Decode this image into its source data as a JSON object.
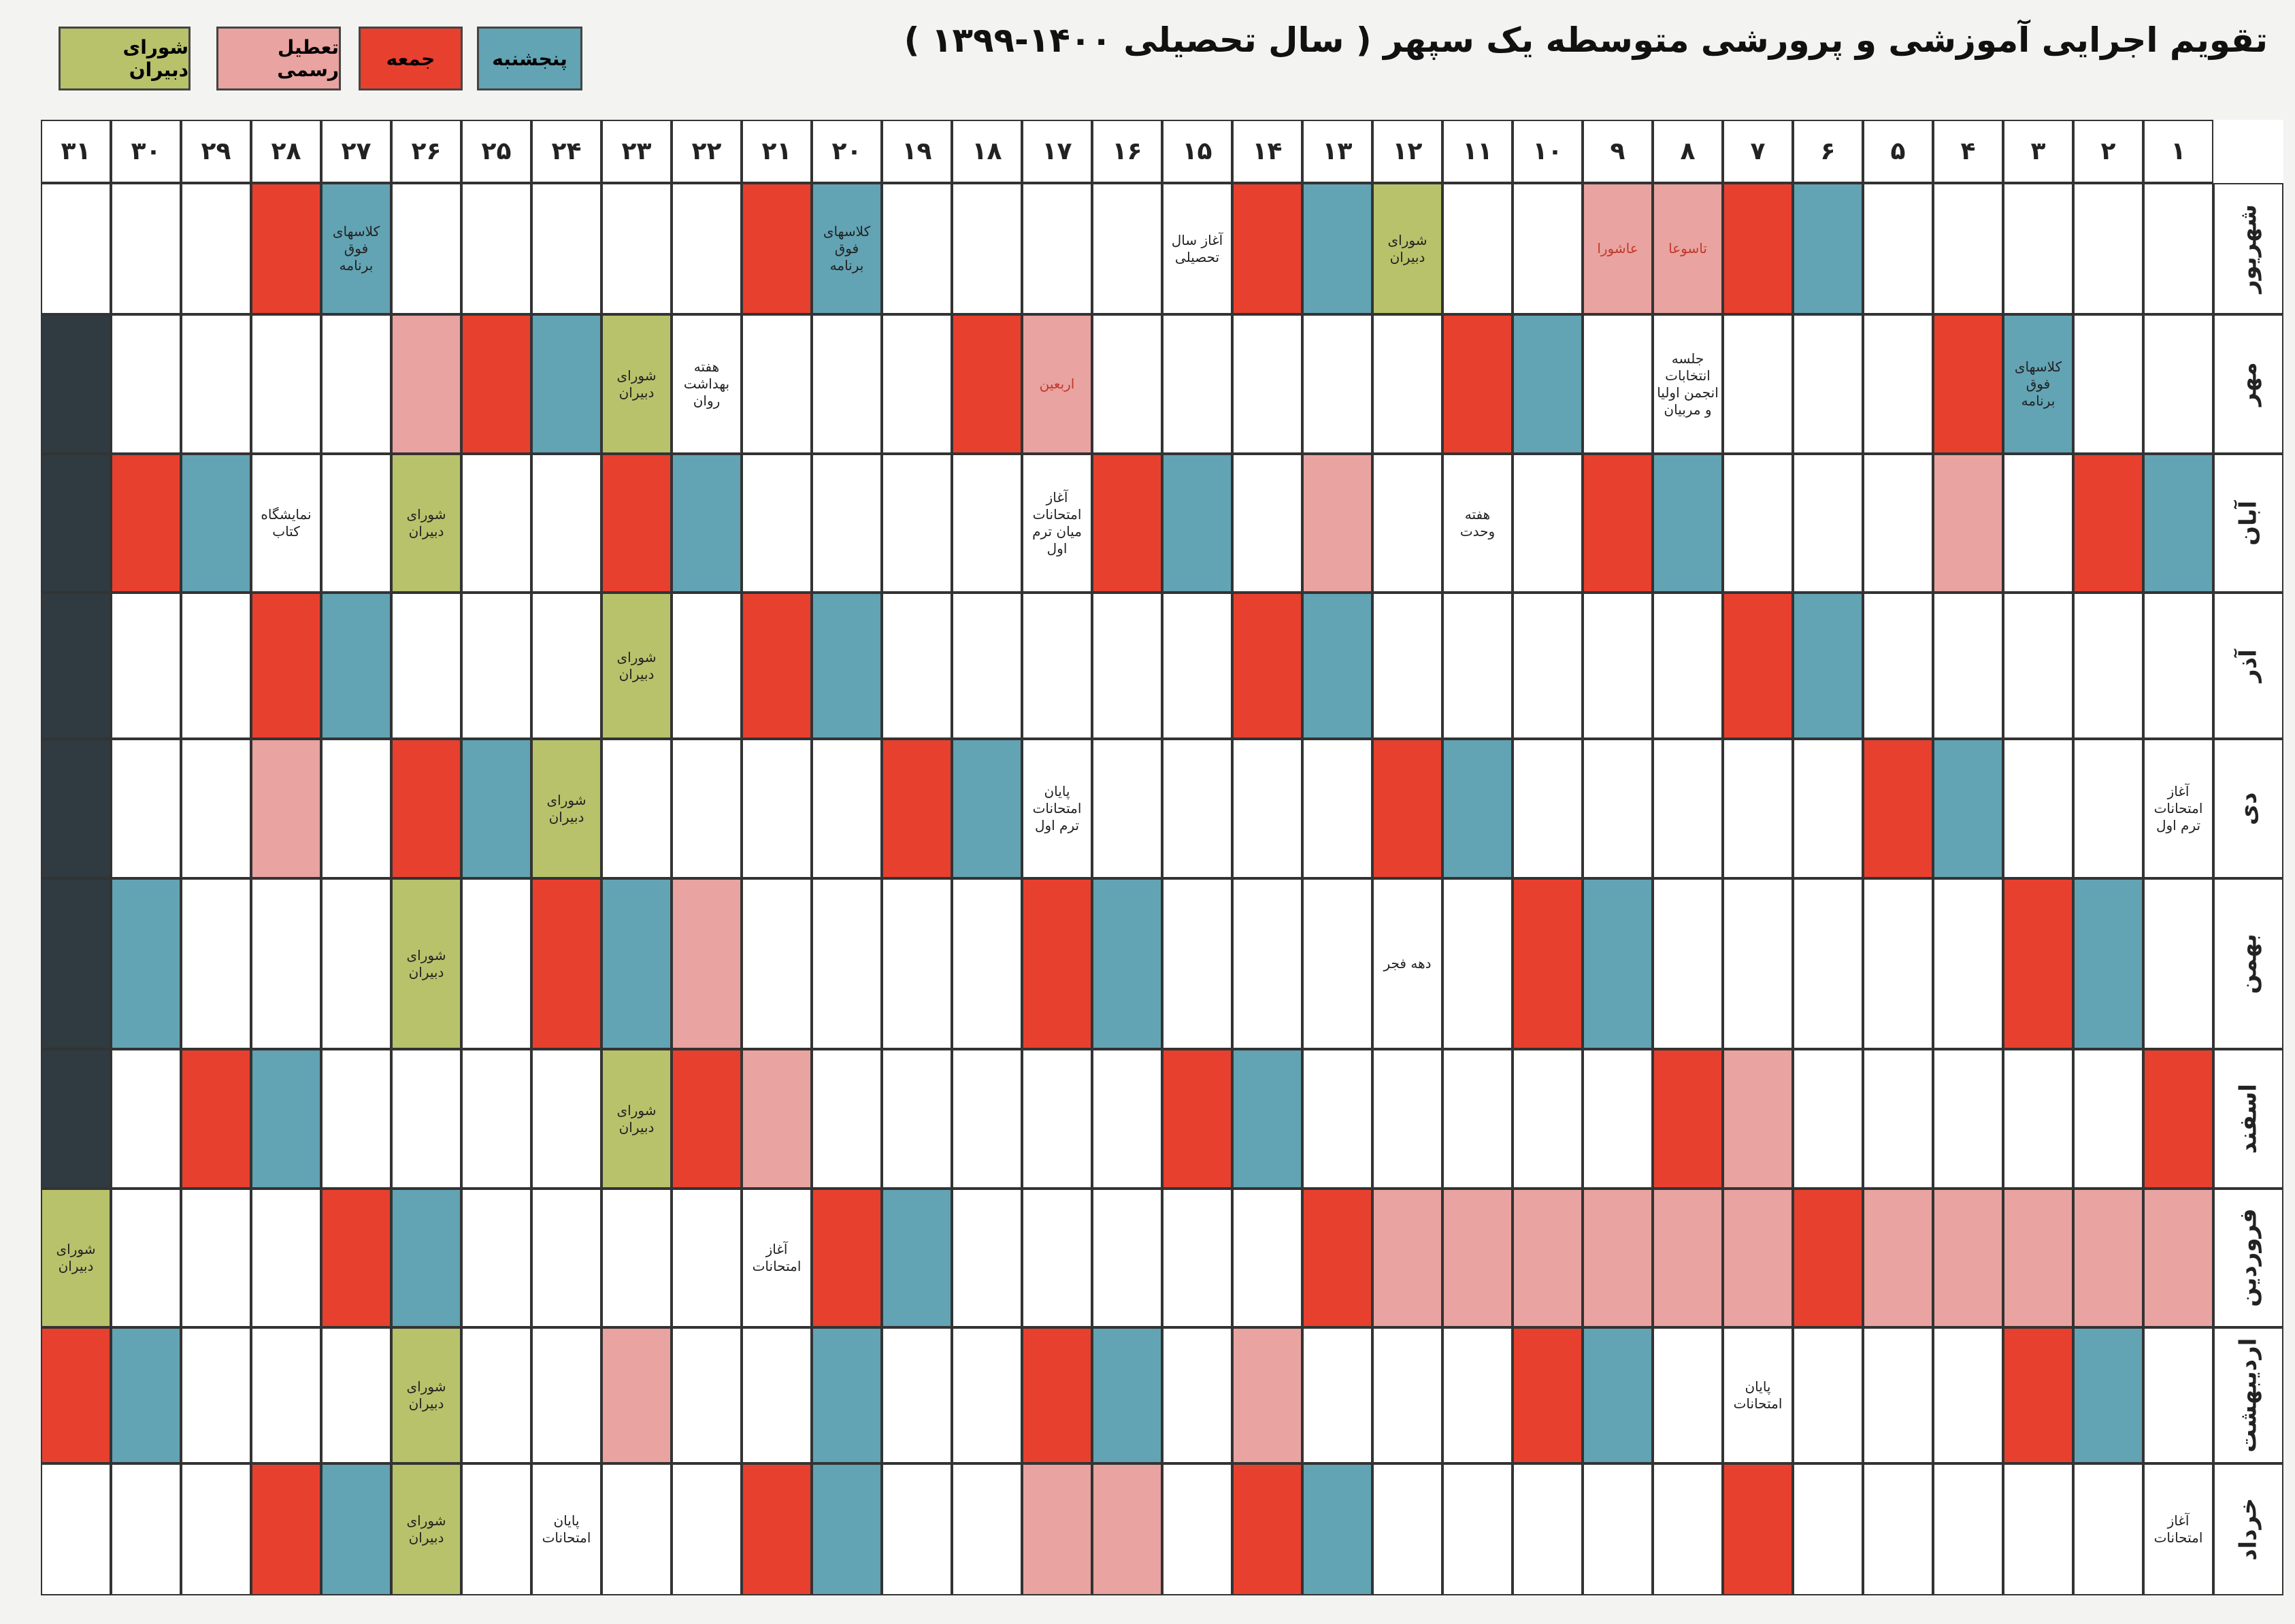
{
  "title": "تقویم اجرایی آموزشی و پرورشی متوسطه یک سپهر ( سال تحصیلی ۱۴۰۰-۱۳۹۹ )",
  "palette": {
    "w": "#ffffff",
    "r": "#e8402e",
    "b": "#62a3b4",
    "p": "#e9a3a0",
    "g": "#b7c26b",
    "d": "#2f3a41"
  },
  "legend": [
    {
      "label": "پنجشنبه",
      "color": "b"
    },
    {
      "label": "جمعه",
      "color": "r"
    },
    {
      "label": "تعطیل رسمی",
      "color": "p"
    },
    {
      "label": "شورای دبیران",
      "color": "g"
    }
  ],
  "days": [
    "۱",
    "۲",
    "۳",
    "۴",
    "۵",
    "۶",
    "۷",
    "۸",
    "۹",
    "۱۰",
    "۱۱",
    "۱۲",
    "۱۳",
    "۱۴",
    "۱۵",
    "۱۶",
    "۱۷",
    "۱۸",
    "۱۹",
    "۲۰",
    "۲۱",
    "۲۲",
    "۲۳",
    "۲۴",
    "۲۵",
    "۲۶",
    "۲۷",
    "۲۸",
    "۲۹",
    "۳۰",
    "۳۱"
  ],
  "months": [
    {
      "name": "شهریور",
      "colors": [
        "w",
        "w",
        "w",
        "w",
        "w",
        "b",
        "r",
        "p",
        "p",
        "w",
        "w",
        "g",
        "b",
        "r",
        "w",
        "w",
        "w",
        "w",
        "w",
        "b",
        "r",
        "w",
        "w",
        "w",
        "w",
        "w",
        "b",
        "r",
        "w",
        "w",
        "w"
      ],
      "texts": [
        null,
        null,
        null,
        null,
        null,
        null,
        null,
        "تاسوعا",
        "عاشورا",
        null,
        null,
        "شورای دبیران",
        null,
        null,
        "آغاز سال تحصیلی",
        null,
        null,
        null,
        null,
        "کلاسهای فوق برنامه",
        null,
        null,
        null,
        null,
        null,
        null,
        "کلاسهای فوق برنامه",
        null,
        null,
        null,
        null
      ]
    },
    {
      "name": "مهر",
      "colors": [
        "w",
        "w",
        "b",
        "r",
        "w",
        "w",
        "w",
        "w",
        "w",
        "b",
        "r",
        "w",
        "w",
        "w",
        "w",
        "w",
        "p",
        "r",
        "w",
        "w",
        "w",
        "w",
        "g",
        "b",
        "r",
        "p",
        "w",
        "w",
        "w",
        "w",
        "d"
      ],
      "texts": [
        null,
        null,
        "کلاسهای فوق برنامه",
        null,
        null,
        null,
        null,
        "جلسه انتخابات انجمن اولیا و مربیان",
        null,
        null,
        null,
        null,
        null,
        null,
        null,
        null,
        "اربعین",
        null,
        null,
        null,
        null,
        "هفته بهداشت روان",
        "شورای دبیران",
        null,
        null,
        null,
        null,
        null,
        null,
        null,
        null
      ]
    },
    {
      "name": "آبان",
      "colors": [
        "b",
        "r",
        "w",
        "p",
        "w",
        "w",
        "w",
        "b",
        "r",
        "w",
        "w",
        "w",
        "p",
        "w",
        "b",
        "r",
        "w",
        "w",
        "w",
        "w",
        "w",
        "b",
        "r",
        "w",
        "w",
        "g",
        "w",
        "w",
        "b",
        "r",
        "d"
      ],
      "texts": [
        null,
        null,
        null,
        null,
        null,
        null,
        null,
        null,
        null,
        null,
        "هفته وحدت",
        null,
        null,
        null,
        null,
        null,
        "آغاز امتحانات میان ترم اول",
        null,
        null,
        null,
        null,
        null,
        null,
        null,
        null,
        "شورای دبیران",
        null,
        "نمایشگاه کتاب",
        null,
        null,
        null
      ]
    },
    {
      "name": "آذر",
      "colors": [
        "w",
        "w",
        "w",
        "w",
        "w",
        "b",
        "r",
        "w",
        "w",
        "w",
        "w",
        "w",
        "b",
        "r",
        "w",
        "w",
        "w",
        "w",
        "w",
        "b",
        "r",
        "w",
        "g",
        "w",
        "w",
        "w",
        "b",
        "r",
        "w",
        "w",
        "d"
      ],
      "texts": [
        null,
        null,
        null,
        null,
        null,
        null,
        null,
        null,
        null,
        null,
        null,
        null,
        null,
        null,
        null,
        null,
        null,
        null,
        null,
        null,
        null,
        null,
        "شورای دبیران",
        null,
        null,
        null,
        null,
        null,
        null,
        null,
        null
      ]
    },
    {
      "name": "دی",
      "colors": [
        "w",
        "w",
        "w",
        "b",
        "r",
        "w",
        "w",
        "w",
        "w",
        "w",
        "b",
        "r",
        "w",
        "w",
        "w",
        "w",
        "w",
        "b",
        "r",
        "w",
        "w",
        "w",
        "w",
        "g",
        "b",
        "r",
        "w",
        "p",
        "w",
        "w",
        "d"
      ],
      "texts": [
        "آغاز امتحانات ترم اول",
        null,
        null,
        null,
        null,
        null,
        null,
        null,
        null,
        null,
        null,
        null,
        null,
        null,
        null,
        null,
        "پایان امتحانات ترم اول",
        null,
        null,
        null,
        null,
        null,
        null,
        "شورای دبیران",
        null,
        null,
        null,
        null,
        null,
        null,
        null
      ]
    },
    {
      "name": "بهمن",
      "colors": [
        "w",
        "b",
        "r",
        "w",
        "w",
        "w",
        "w",
        "w",
        "b",
        "r",
        "w",
        "w",
        "w",
        "w",
        "w",
        "b",
        "r",
        "w",
        "w",
        "w",
        "w",
        "p",
        "b",
        "r",
        "w",
        "g",
        "w",
        "w",
        "w",
        "b",
        "d"
      ],
      "texts": [
        null,
        null,
        null,
        null,
        null,
        null,
        null,
        null,
        null,
        null,
        null,
        "دهه فجر",
        null,
        null,
        null,
        null,
        null,
        null,
        null,
        null,
        null,
        null,
        null,
        null,
        null,
        "شورای دبیران",
        null,
        null,
        null,
        null,
        null
      ]
    },
    {
      "name": "اسفند",
      "colors": [
        "r",
        "w",
        "w",
        "w",
        "w",
        "w",
        "p",
        "r",
        "w",
        "w",
        "w",
        "w",
        "w",
        "b",
        "r",
        "w",
        "w",
        "w",
        "w",
        "w",
        "p",
        "r",
        "g",
        "w",
        "w",
        "w",
        "w",
        "b",
        "r",
        "w",
        "d"
      ],
      "texts": [
        null,
        null,
        null,
        null,
        null,
        null,
        null,
        null,
        null,
        null,
        null,
        null,
        null,
        null,
        null,
        null,
        null,
        null,
        null,
        null,
        null,
        null,
        "شورای دبیران",
        null,
        null,
        null,
        null,
        null,
        null,
        null,
        null
      ]
    },
    {
      "name": "فروردین",
      "colors": [
        "p",
        "p",
        "p",
        "p",
        "p",
        "r",
        "p",
        "p",
        "p",
        "p",
        "p",
        "p",
        "r",
        "w",
        "w",
        "w",
        "w",
        "w",
        "b",
        "r",
        "w",
        "w",
        "w",
        "w",
        "w",
        "b",
        "r",
        "w",
        "w",
        "w",
        "g"
      ],
      "texts": [
        null,
        null,
        null,
        null,
        null,
        null,
        null,
        null,
        null,
        null,
        null,
        null,
        null,
        null,
        null,
        null,
        null,
        null,
        null,
        null,
        "آغاز امتحانات",
        null,
        null,
        null,
        null,
        null,
        null,
        null,
        null,
        null,
        "شورای دبیران"
      ]
    },
    {
      "name": "اردیبهشت",
      "colors": [
        "w",
        "b",
        "r",
        "w",
        "w",
        "w",
        "w",
        "w",
        "b",
        "r",
        "w",
        "w",
        "w",
        "p",
        "w",
        "b",
        "r",
        "w",
        "w",
        "b",
        "w",
        "w",
        "p",
        "w",
        "w",
        "g",
        "w",
        "w",
        "w",
        "b",
        "r"
      ],
      "texts": [
        null,
        null,
        null,
        null,
        null,
        null,
        "پایان امتحانات",
        null,
        null,
        null,
        null,
        null,
        null,
        null,
        null,
        null,
        null,
        null,
        null,
        null,
        null,
        null,
        null,
        null,
        null,
        "شورای دبیران",
        null,
        null,
        null,
        null,
        null
      ]
    },
    {
      "name": "خرداد",
      "colors": [
        "w",
        "w",
        "w",
        "w",
        "w",
        "w",
        "r",
        "w",
        "w",
        "w",
        "w",
        "w",
        "b",
        "r",
        "w",
        "p",
        "p",
        "w",
        "w",
        "b",
        "r",
        "w",
        "w",
        "w",
        "w",
        "g",
        "b",
        "r",
        "w",
        "w",
        "w"
      ],
      "texts": [
        "آغاز امتحانات",
        null,
        null,
        null,
        null,
        null,
        null,
        null,
        null,
        null,
        null,
        null,
        null,
        null,
        null,
        null,
        null,
        null,
        null,
        null,
        null,
        null,
        null,
        "پایان امتحانات",
        null,
        "شورای دبیران",
        null,
        null,
        null,
        null,
        null
      ]
    }
  ]
}
